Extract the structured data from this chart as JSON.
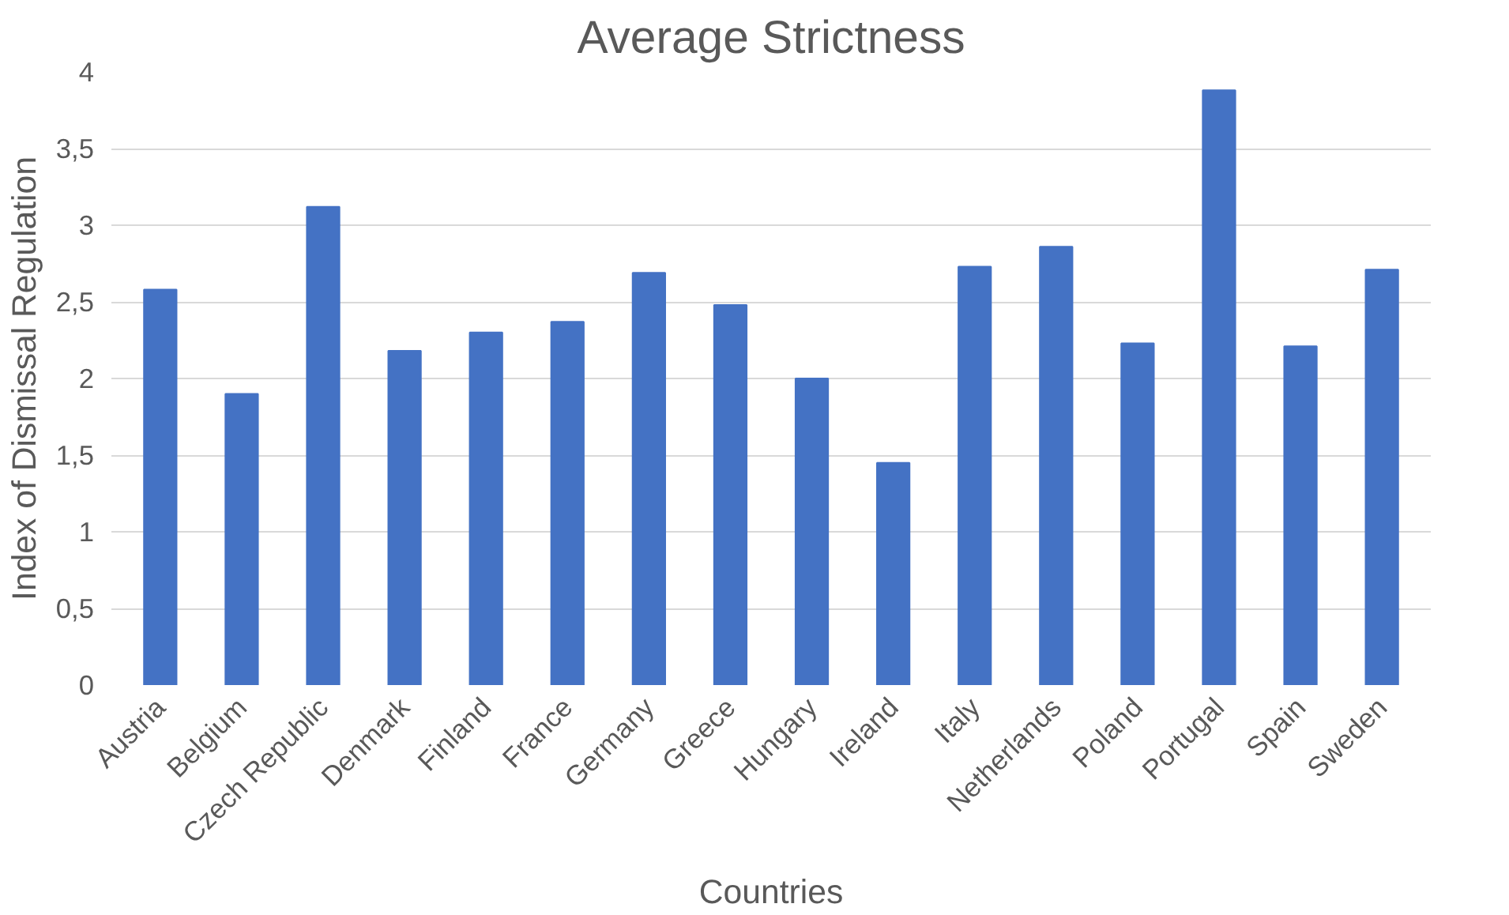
{
  "chart_data": {
    "type": "bar",
    "title": "Average Strictness",
    "xlabel": "Countries",
    "ylabel": "Index of Dismissal Regulation",
    "categories": [
      "Austria",
      "Belgium",
      "Czech Republic",
      "Denmark",
      "Finland",
      "France",
      "Germany",
      "Greece",
      "Hungary",
      "Ireland",
      "Italy",
      "Netherlands",
      "Poland",
      "Portugal",
      "Spain",
      "Sweden"
    ],
    "values": [
      2.58,
      1.9,
      3.12,
      2.18,
      2.3,
      2.37,
      2.69,
      2.48,
      2.0,
      1.45,
      2.73,
      2.86,
      2.23,
      3.88,
      2.21,
      2.71
    ],
    "color": "#4472c4",
    "ylim": [
      0,
      4
    ],
    "yticks": [
      0,
      {
        "value": 0.5,
        "label": "0,5"
      },
      1,
      {
        "value": 1.5,
        "label": "1,5"
      },
      2,
      {
        "value": 2.5,
        "label": "2,5"
      },
      3,
      {
        "value": 3.5,
        "label": "3,5"
      },
      4
    ],
    "grid": "y"
  }
}
